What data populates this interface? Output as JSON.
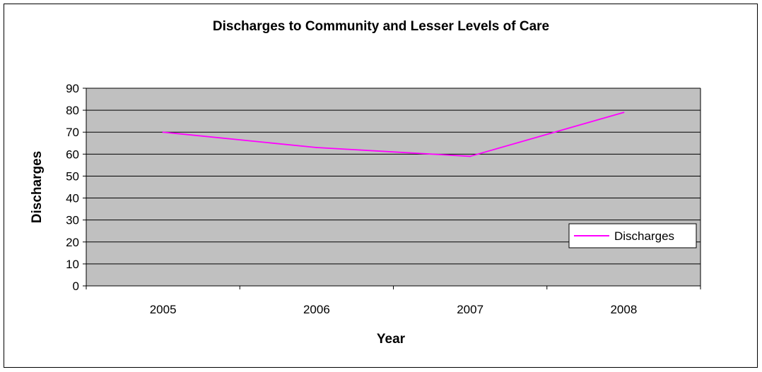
{
  "chart_data": {
    "type": "line",
    "title": "Discharges to Community and Lesser Levels of Care",
    "xlabel": "Year",
    "ylabel": "Discharges",
    "categories": [
      "2005",
      "2006",
      "2007",
      "2008"
    ],
    "series": [
      {
        "name": "Discharges",
        "values": [
          70,
          63,
          59,
          79
        ],
        "color": "#ff00ff"
      }
    ],
    "ylim": [
      0,
      90
    ],
    "yticks": [
      "0",
      "10",
      "20",
      "30",
      "40",
      "50",
      "60",
      "70",
      "80",
      "90"
    ],
    "grid": true,
    "plot_background": "#c0c0c0",
    "legend_position": "right"
  }
}
